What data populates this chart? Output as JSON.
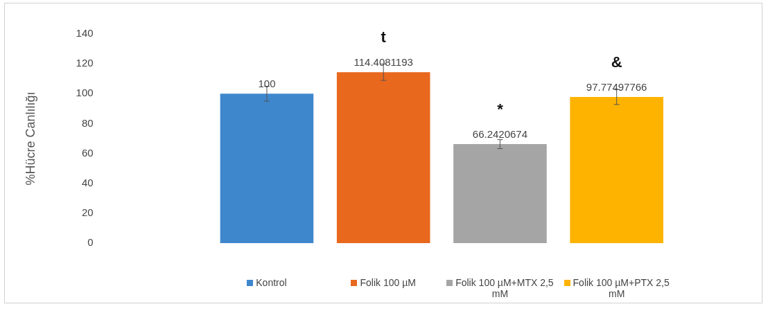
{
  "chart_data": {
    "type": "bar",
    "ylabel": "%Hücre Canlılığı",
    "categories": [
      null
    ],
    "series": [
      {
        "name": "Kontrol",
        "color": "#3f87cd",
        "values": [
          100
        ],
        "errors": [
          5
        ]
      },
      {
        "name": "Folik 100 µM",
        "color": "#e8681e",
        "values": [
          114.4081193
        ],
        "errors": [
          5.5
        ]
      },
      {
        "name": "Folik 100 µM+MTX 2,5 mM",
        "color": "#a5a5a5",
        "values": [
          66.2420674
        ],
        "errors": [
          3
        ]
      },
      {
        "name": "Folik 100 µM+PTX 2,5 mM",
        "color": "#fdb300",
        "values": [
          97.77497766
        ],
        "errors": [
          5
        ]
      }
    ],
    "ylim": [
      0,
      140
    ],
    "yticks": [
      0,
      20,
      40,
      60,
      80,
      100,
      120,
      140
    ],
    "grid": false,
    "legend": "bottom",
    "data_labels": true,
    "annotations": [
      "t",
      "*",
      "&"
    ]
  }
}
